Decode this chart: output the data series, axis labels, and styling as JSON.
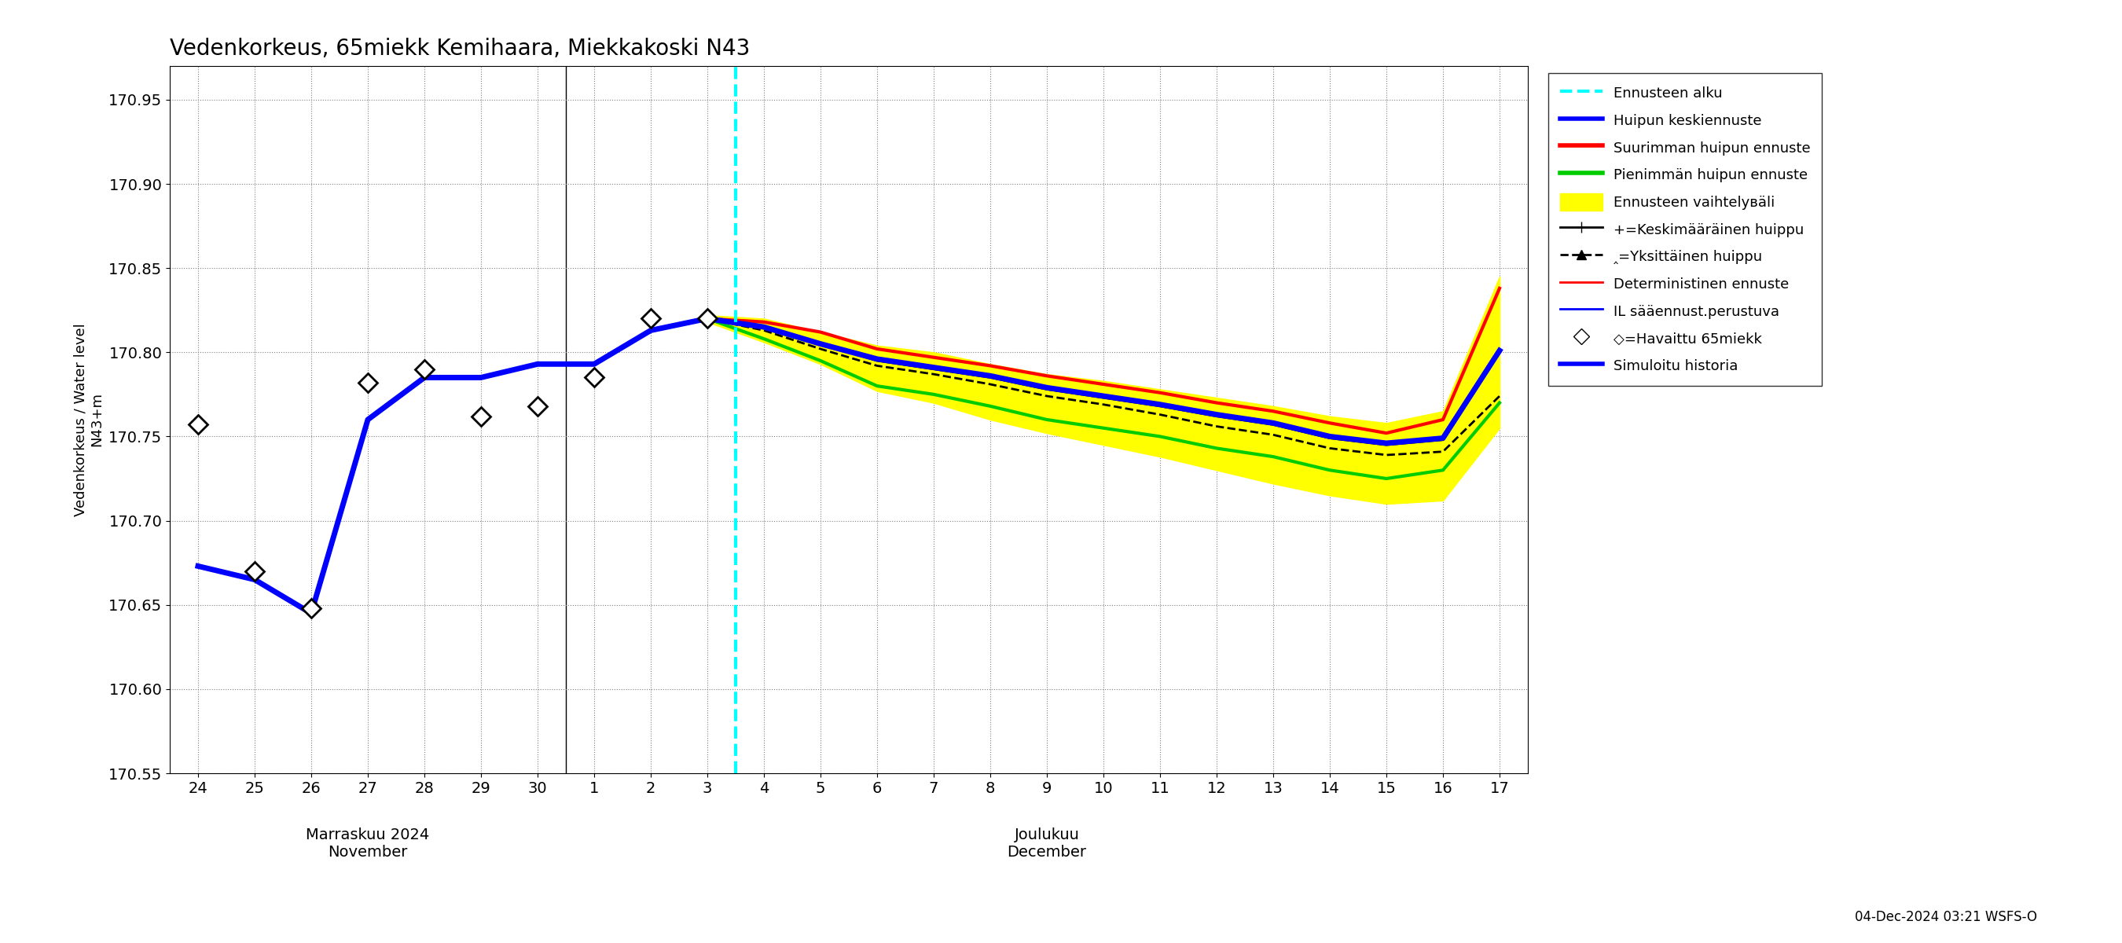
{
  "title": "Vedenkorkeus, 65miekk Kemihaara, Miekkakoski N43",
  "ylabel_top": "N43+m",
  "ylabel_bottom": "Vedenkorkeus / Water level",
  "ylim": [
    170.55,
    170.97
  ],
  "yticks": [
    170.55,
    170.6,
    170.65,
    170.7,
    170.75,
    170.8,
    170.85,
    170.9,
    170.95
  ],
  "footer": "04-Dec-2024 03:21 WSFS-O",
  "observed_y": [
    170.757,
    170.67,
    170.648,
    170.782,
    170.79,
    170.762,
    170.768,
    170.785,
    170.82,
    170.82
  ],
  "sim_hist_y": [
    170.673,
    170.665,
    170.645,
    170.76,
    170.785,
    170.785,
    170.793,
    170.793,
    170.813,
    170.82
  ],
  "band_upper": [
    170.822,
    170.82,
    170.812,
    170.804,
    170.8,
    170.793,
    170.787,
    170.783,
    170.778,
    170.773,
    170.768,
    170.762,
    170.758,
    170.765,
    170.845
  ],
  "band_lower": [
    170.818,
    170.806,
    170.793,
    170.777,
    170.77,
    170.76,
    170.752,
    170.745,
    170.738,
    170.73,
    170.722,
    170.715,
    170.71,
    170.712,
    170.755
  ],
  "green_y": [
    170.82,
    170.808,
    170.795,
    170.78,
    170.775,
    170.768,
    170.76,
    170.755,
    170.75,
    170.743,
    170.738,
    170.73,
    170.725,
    170.73,
    170.77
  ],
  "black_solid_y": [
    170.82,
    170.815,
    170.805,
    170.795,
    170.79,
    170.785,
    170.778,
    170.773,
    170.768,
    170.762,
    170.757,
    170.749,
    170.745,
    170.748,
    170.8
  ],
  "black_dash_y": [
    170.82,
    170.813,
    170.802,
    170.792,
    170.787,
    170.781,
    170.774,
    170.769,
    170.763,
    170.756,
    170.751,
    170.743,
    170.739,
    170.741,
    170.774
  ],
  "red_y": [
    170.82,
    170.818,
    170.812,
    170.802,
    170.797,
    170.792,
    170.786,
    170.781,
    170.776,
    170.77,
    170.765,
    170.758,
    170.752,
    170.76,
    170.838
  ],
  "blue_keski_y": [
    170.82,
    170.815,
    170.805,
    170.796,
    170.791,
    170.786,
    170.779,
    170.774,
    170.769,
    170.763,
    170.758,
    170.75,
    170.746,
    170.749,
    170.801
  ]
}
